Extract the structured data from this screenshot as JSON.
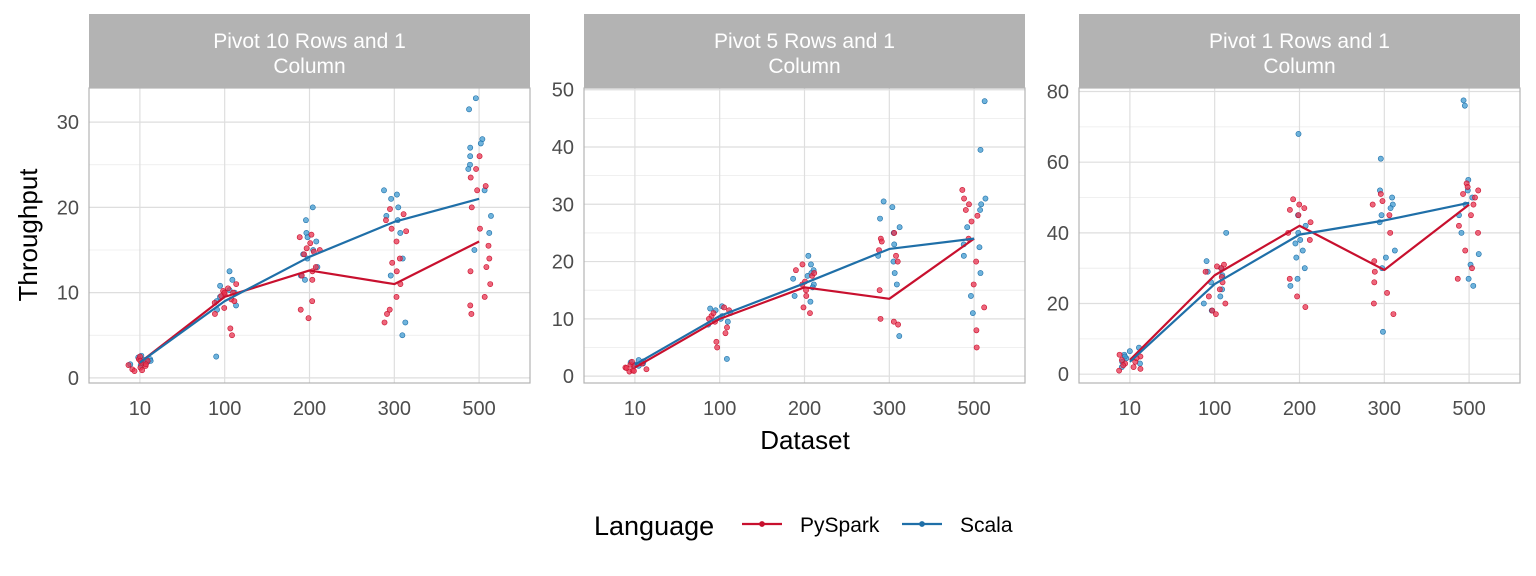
{
  "colors": {
    "pyspark": "#C8102E",
    "scala": "#1F6FA8",
    "pyspark_point": "#E8334F",
    "scala_point": "#3E9AD0",
    "strip_bg": "#B3B3B3",
    "grid": "#DEDEDE",
    "panel_border": "#B3B3B3"
  },
  "chart_data": {
    "type": "line",
    "xlabel": "Dataset",
    "ylabel": "Throughput",
    "categories": [
      "10",
      "100",
      "200",
      "300",
      "500"
    ],
    "legend": {
      "title": "Language",
      "position": "bottom",
      "entries": [
        {
          "name": "PySpark",
          "color": "#C8102E"
        },
        {
          "name": "Scala",
          "color": "#1F6FA8"
        }
      ]
    },
    "grid": true,
    "panels": [
      {
        "title_line1": "Pivot 10 Rows and 1",
        "title_line2": "Column",
        "ylim": [
          -0.6,
          34
        ],
        "yticks": [
          0,
          10,
          20,
          30
        ],
        "series": [
          {
            "name": "PySpark",
            "values": [
              1.8,
              9.5,
              12.6,
              11.0,
              16.0
            ],
            "points": [
              [
                1.0,
                1.4,
                1.8,
                2.2,
                0.8,
                2.0,
                1.6,
                2.5,
                1.2,
                2.0,
                1.5,
                0.9
              ],
              [
                9.2,
                10.0,
                10.5,
                8.8,
                9.8,
                5.0,
                5.8,
                7.5,
                10.2,
                11.0,
                9.0,
                8.2,
                9.6,
                10.0
              ],
              [
                16.5,
                15.8,
                15.2,
                14.8,
                13.0,
                12.5,
                9.0,
                8.0,
                7.0,
                16.8,
                12.0,
                14.5,
                15.0,
                11.5
              ],
              [
                19.8,
                18.5,
                17.2,
                16.0,
                14.0,
                12.5,
                11.0,
                9.5,
                8.0,
                7.5,
                6.5,
                17.5,
                19.2,
                13.5
              ],
              [
                26.0,
                24.5,
                23.5,
                22.5,
                20.0,
                17.5,
                15.5,
                14.0,
                12.5,
                11.0,
                9.5,
                8.5,
                7.5,
                22.0,
                13.0
              ]
            ]
          },
          {
            "name": "Scala",
            "values": [
              1.8,
              9.0,
              14.2,
              18.3,
              21.0
            ],
            "points": [
              [
                2.6,
                2.2,
                1.8,
                1.5,
                2.4,
                1.9,
                2.1,
                1.6,
                2.0
              ],
              [
                12.5,
                11.5,
                10.8,
                10.0,
                9.5,
                9.0,
                8.5,
                8.0,
                2.5,
                10.3
              ],
              [
                20.0,
                18.5,
                17.0,
                16.0,
                15.0,
                14.0,
                13.0,
                12.0,
                11.5,
                16.5,
                14.5
              ],
              [
                22.0,
                21.0,
                20.0,
                19.0,
                18.5,
                17.0,
                14.0,
                12.0,
                5.0,
                6.5,
                21.5
              ],
              [
                32.8,
                31.5,
                28.0,
                27.0,
                26.0,
                25.0,
                22.0,
                19.0,
                17.0,
                15.0,
                24.5,
                27.5
              ]
            ]
          }
        ]
      },
      {
        "title_line1": "Pivot 5 Rows and 1",
        "title_line2": "Column",
        "ylim": [
          -1.2,
          50.3
        ],
        "yticks": [
          0,
          10,
          20,
          30,
          40,
          50
        ],
        "series": [
          {
            "name": "PySpark",
            "values": [
              1.5,
              10.0,
              15.5,
              13.5,
              24.0
            ],
            "points": [
              [
                0.8,
                1.2,
                1.5,
                1.8,
                2.2,
                1.0,
                2.0,
                1.4,
                2.5,
                0.9
              ],
              [
                12.0,
                11.5,
                10.5,
                9.5,
                8.5,
                7.5,
                6.0,
                5.0,
                11.0,
                10.0
              ],
              [
                19.5,
                18.5,
                17.5,
                16.5,
                15.0,
                14.0,
                12.0,
                11.0,
                18.0,
                16.0
              ],
              [
                25.0,
                24.0,
                22.0,
                20.0,
                15.0,
                10.0,
                9.5,
                9.0,
                23.5,
                21.0
              ],
              [
                32.5,
                31.0,
                30.0,
                29.0,
                27.0,
                24.0,
                20.0,
                16.0,
                12.0,
                8.0,
                5.0,
                28.0
              ]
            ]
          },
          {
            "name": "Scala",
            "values": [
              2.0,
              10.5,
              16.2,
              22.2,
              24.0
            ],
            "points": [
              [
                2.8,
                2.4,
                2.0,
                1.8,
                2.2,
                2.6,
                1.9
              ],
              [
                12.2,
                11.8,
                11.0,
                10.5,
                10.0,
                9.5,
                9.0,
                3.0,
                11.5
              ],
              [
                21.0,
                19.5,
                18.5,
                17.5,
                17.0,
                16.0,
                15.5,
                14.0,
                13.0,
                18.0
              ],
              [
                30.5,
                29.5,
                27.5,
                25.0,
                23.0,
                21.0,
                20.0,
                18.0,
                16.0,
                7.0,
                26.0
              ],
              [
                48.0,
                39.5,
                31.0,
                30.0,
                29.0,
                26.0,
                23.0,
                21.0,
                18.0,
                14.0,
                11.0,
                22.5
              ]
            ]
          }
        ]
      },
      {
        "title_line1": "Pivot 1 Rows and 1",
        "title_line2": "Column",
        "ylim": [
          -2.5,
          81
        ],
        "yticks": [
          0,
          20,
          40,
          60,
          80
        ],
        "series": [
          {
            "name": "PySpark",
            "values": [
              4.0,
              28.0,
              42.0,
              29.5,
              48.0
            ],
            "points": [
              [
                1.0,
                2.0,
                3.0,
                4.0,
                5.0,
                3.5,
                2.5,
                4.5,
                1.5,
                5.5
              ],
              [
                31.0,
                30.0,
                29.0,
                27.5,
                26.0,
                24.0,
                22.0,
                20.0,
                18.0,
                17.0,
                30.5
              ],
              [
                49.5,
                48.0,
                46.5,
                45.0,
                43.0,
                40.0,
                38.0,
                27.0,
                22.0,
                19.0,
                47.0
              ],
              [
                51.0,
                49.0,
                45.0,
                40.0,
                32.0,
                29.0,
                26.0,
                23.0,
                20.0,
                17.0,
                48.0
              ],
              [
                54.0,
                53.0,
                52.0,
                51.0,
                50.0,
                48.0,
                45.0,
                42.0,
                40.0,
                35.0,
                30.0,
                27.0
              ]
            ]
          },
          {
            "name": "Scala",
            "values": [
              3.5,
              25.5,
              39.5,
              43.5,
              48.5
            ],
            "points": [
              [
                7.5,
                6.5,
                5.5,
                4.5,
                3.5,
                3.0,
                2.0,
                5.0
              ],
              [
                40.0,
                32.0,
                30.0,
                28.0,
                26.0,
                24.0,
                22.0,
                20.0,
                18.0,
                29.0
              ],
              [
                68.0,
                45.0,
                42.0,
                40.0,
                38.0,
                35.0,
                33.0,
                30.0,
                27.0,
                25.0,
                37.0
              ],
              [
                61.0,
                52.0,
                50.0,
                48.0,
                45.0,
                43.0,
                35.0,
                33.0,
                30.0,
                12.0,
                47.0
              ],
              [
                77.5,
                76.0,
                55.0,
                52.0,
                50.0,
                48.0,
                40.0,
                34.0,
                31.0,
                27.0,
                25.0,
                45.0
              ]
            ]
          }
        ]
      }
    ]
  }
}
